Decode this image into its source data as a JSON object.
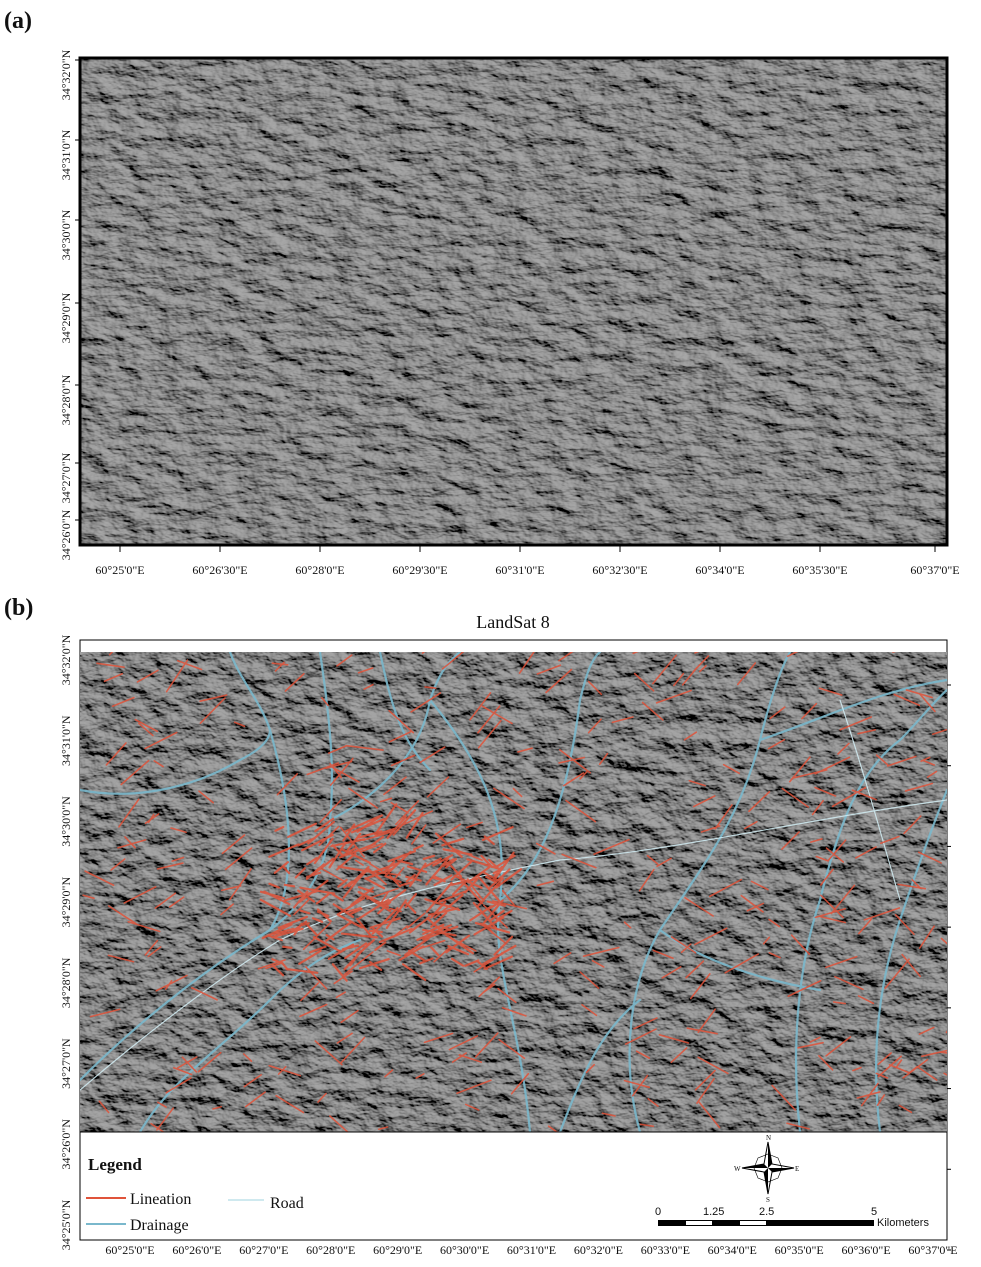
{
  "panels": [
    {
      "label": "(a)",
      "y_labels": [
        "34°32'0\"N",
        "34°31'0\"N",
        "34°30'0\"N",
        "34°29'0\"N",
        "34°28'0\"N",
        "34°27'0\"N",
        "34°26'0\"N"
      ],
      "x_labels": [
        "60°25'0\"E",
        "60°26'30\"E",
        "60°28'0\"E",
        "60°29'30\"E",
        "60°31'0\"E",
        "60°32'30\"E",
        "60°34'0\"E",
        "60°35'30\"E",
        "60°37'0\"E"
      ]
    },
    {
      "label": "(b)",
      "title": "LandSat 8",
      "y_labels": [
        "34°32'0\"N",
        "34°31'0\"N",
        "34°30'0\"N",
        "34°29'0\"N",
        "34°28'0\"N",
        "34°27'0\"N",
        "34°26'0\"N",
        "34°25'0\"N"
      ],
      "x_labels": [
        "60°25'0\"E",
        "60°26'0\"E",
        "60°27'0\"E",
        "60°28'0\"E",
        "60°29'0\"E",
        "60°30'0\"E",
        "60°31'0\"E",
        "60°32'0\"E",
        "60°33'0\"E",
        "60°34'0\"E",
        "60°35'0\"E",
        "60°36'0\"E",
        "60°37'0\"E"
      ],
      "legend": {
        "title": "Legend",
        "items": [
          "Lineation",
          "Drainage",
          "Road"
        ]
      },
      "scale_bar": {
        "labels": [
          "0",
          "1.25",
          "2.5",
          "5"
        ],
        "unit": "Kilometers"
      },
      "compass": [
        "N",
        "E",
        "S",
        "W"
      ]
    }
  ]
}
